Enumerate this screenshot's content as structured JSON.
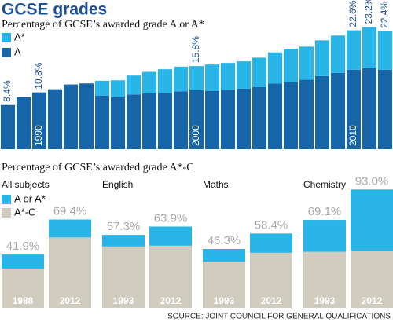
{
  "chart_data": [
    {
      "type": "bar",
      "stacked": true,
      "title": "GCSE grades",
      "subtitle": "Percentage of GCSE’s awarded grade A or A*",
      "categories": [
        null,
        null,
        "1990",
        null,
        null,
        null,
        null,
        null,
        null,
        null,
        null,
        null,
        "2000",
        null,
        null,
        null,
        null,
        null,
        null,
        null,
        null,
        null,
        "2010",
        null,
        null
      ],
      "series": [
        {
          "name": "A",
          "color": "#1565a8",
          "values": [
            8.4,
            9.9,
            10.8,
            11.4,
            12.3,
            12.5,
            10.2,
            9.9,
            10.4,
            10.6,
            10.7,
            11.0,
            11.2,
            11.1,
            11.3,
            11.5,
            11.8,
            12.5,
            12.7,
            13.2,
            13.9,
            14.5,
            15.1,
            15.4,
            15.1
          ]
        },
        {
          "name": "A*",
          "color": "#29b5e8",
          "values": [
            null,
            null,
            null,
            null,
            null,
            null,
            2.8,
            3.2,
            3.6,
            4.1,
            4.5,
            4.7,
            4.6,
            5.0,
            5.1,
            5.2,
            5.6,
            5.9,
            6.4,
            6.3,
            6.8,
            7.1,
            7.5,
            7.8,
            7.3
          ]
        }
      ],
      "annotations": [
        {
          "category_index": 0,
          "value": 8.4,
          "label": "8.4%"
        },
        {
          "category_index": 2,
          "value": 10.8,
          "label": "10.8%"
        },
        {
          "category_index": 12,
          "value": 15.8,
          "label": "15.8%"
        },
        {
          "category_index": 22,
          "value": 22.6,
          "label": "22.6%"
        },
        {
          "category_index": 23,
          "value": 23.2,
          "label": "23.2%"
        },
        {
          "category_index": 24,
          "value": 22.4,
          "label": "22.4%"
        }
      ]
    },
    {
      "type": "bar",
      "subtitle": "Percentage of GCSE’s awarded grade A*-C",
      "groups": [
        "All subjects",
        "English",
        "Maths",
        "Chemistry"
      ],
      "categories": [
        "1988",
        "2012",
        "1993",
        "2012",
        "1993",
        "2012",
        "1993",
        "2012"
      ],
      "series": [
        {
          "name": "A or A*",
          "color": "#29b5e8",
          "values": [
            11,
            14,
            9,
            15,
            10,
            15,
            25,
            48
          ]
        },
        {
          "name": "A*-C",
          "color": "#d0ccc0",
          "values": [
            41.9,
            69.4,
            57.3,
            63.9,
            46.3,
            58.4,
            69.1,
            93.0
          ],
          "value_labels": [
            "41.9%",
            "69.4%",
            "57.3%",
            "63.9%",
            "46.3%",
            "58.4%",
            "69.1%",
            "93.0%"
          ]
        }
      ],
      "source": "SOURCE: JOINT COUNCIL FOR GENERAL QUALIFICATIONS"
    }
  ]
}
